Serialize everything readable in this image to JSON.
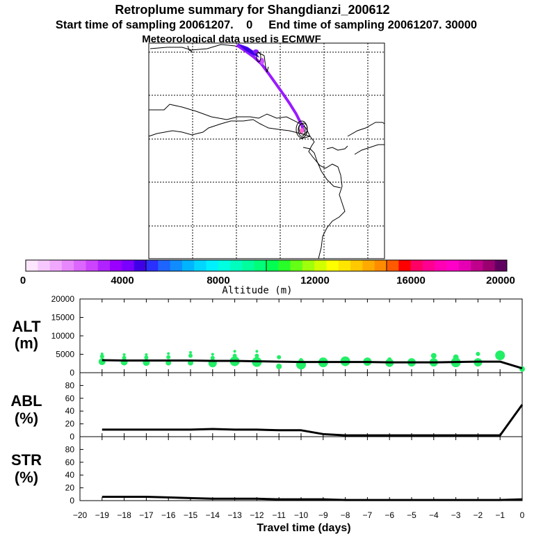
{
  "header": {
    "title": "Retroplume summary for Shangdianzi_200612",
    "sampling": "Start time of sampling 20061207.    0     End time of sampling 20061207. 30000",
    "met": "Meteorological data used is ECMWF"
  },
  "colorbar": {
    "label": "Altitude (m)",
    "tick_labels": [
      "0",
      "4000",
      "8000",
      "12000",
      "16000",
      "20000"
    ],
    "colors": [
      "#ffe6ff",
      "#f7c8ff",
      "#f0a8ff",
      "#e888ff",
      "#dc66ff",
      "#cc44ff",
      "#b022ff",
      "#9a00ff",
      "#7a00ff",
      "#4000e6",
      "#2a30ff",
      "#1e64ff",
      "#108cff",
      "#00b4ff",
      "#00d6ff",
      "#00f0ff",
      "#00ffe0",
      "#00ffbe",
      "#00ff9c",
      "#00ff78",
      "#00ff50",
      "#28ff28",
      "#64ff14",
      "#a0ff0a",
      "#d2ff00",
      "#ffff00",
      "#ffe600",
      "#ffc800",
      "#ffaa00",
      "#ff8c00",
      "#ff5a00",
      "#ff0000",
      "#ff0064",
      "#ff0090",
      "#ff00b4",
      "#ff00c8",
      "#e600b4",
      "#c0008c",
      "#9a0070",
      "#600060"
    ]
  },
  "chart_data": [
    {
      "type": "scatter",
      "title": "ALT (m)",
      "ylabel_lines": [
        "ALT",
        "(m)"
      ],
      "ylim": [
        0,
        20000
      ],
      "yticks": [
        0,
        5000,
        10000,
        15000,
        20000
      ],
      "xlim": [
        -20,
        0
      ],
      "line": {
        "x": [
          -19,
          -18,
          -17,
          -16,
          -15,
          -14,
          -13,
          -12,
          -11,
          -10,
          -9,
          -8,
          -7,
          -6,
          -5,
          -4,
          -3,
          -2,
          -1,
          0
        ],
        "y": [
          3400,
          3300,
          3300,
          3300,
          3300,
          3200,
          3200,
          3100,
          3000,
          2900,
          2900,
          2900,
          2900,
          2800,
          2800,
          2800,
          2900,
          3000,
          3000,
          1200
        ]
      },
      "points": [
        {
          "x": -19,
          "y": 5100,
          "s": 2
        },
        {
          "x": -19,
          "y": 4400,
          "s": 3
        },
        {
          "x": -19,
          "y": 3000,
          "s": 5
        },
        {
          "x": -18,
          "y": 4900,
          "s": 2
        },
        {
          "x": -18,
          "y": 4000,
          "s": 3
        },
        {
          "x": -18,
          "y": 2900,
          "s": 5
        },
        {
          "x": -17,
          "y": 4900,
          "s": 2
        },
        {
          "x": -17,
          "y": 4100,
          "s": 3
        },
        {
          "x": -17,
          "y": 2800,
          "s": 5
        },
        {
          "x": -16,
          "y": 5200,
          "s": 2
        },
        {
          "x": -16,
          "y": 4200,
          "s": 3
        },
        {
          "x": -16,
          "y": 2700,
          "s": 4
        },
        {
          "x": -15,
          "y": 5500,
          "s": 2
        },
        {
          "x": -15,
          "y": 4600,
          "s": 3
        },
        {
          "x": -15,
          "y": 2700,
          "s": 4
        },
        {
          "x": -14,
          "y": 5000,
          "s": 2
        },
        {
          "x": -14,
          "y": 4000,
          "s": 3
        },
        {
          "x": -14,
          "y": 2600,
          "s": 6
        },
        {
          "x": -13,
          "y": 5800,
          "s": 2
        },
        {
          "x": -13,
          "y": 4600,
          "s": 3
        },
        {
          "x": -13,
          "y": 3100,
          "s": 7
        },
        {
          "x": -12,
          "y": 5800,
          "s": 2
        },
        {
          "x": -12,
          "y": 4600,
          "s": 3
        },
        {
          "x": -12,
          "y": 2900,
          "s": 7
        },
        {
          "x": -11,
          "y": 4200,
          "s": 3
        },
        {
          "x": -11,
          "y": 1700,
          "s": 4
        },
        {
          "x": -10,
          "y": 3400,
          "s": 3
        },
        {
          "x": -10,
          "y": 2200,
          "s": 7
        },
        {
          "x": -9,
          "y": 2800,
          "s": 7
        },
        {
          "x": -8,
          "y": 3100,
          "s": 7
        },
        {
          "x": -7,
          "y": 3000,
          "s": 6
        },
        {
          "x": -6,
          "y": 3600,
          "s": 3
        },
        {
          "x": -6,
          "y": 2700,
          "s": 6
        },
        {
          "x": -5,
          "y": 2800,
          "s": 6
        },
        {
          "x": -4,
          "y": 4600,
          "s": 4
        },
        {
          "x": -4,
          "y": 2800,
          "s": 6
        },
        {
          "x": -3,
          "y": 4200,
          "s": 4
        },
        {
          "x": -3,
          "y": 2800,
          "s": 7
        },
        {
          "x": -2,
          "y": 5100,
          "s": 3
        },
        {
          "x": -2,
          "y": 2800,
          "s": 6
        },
        {
          "x": -1,
          "y": 4700,
          "s": 7
        },
        {
          "x": 0,
          "y": 1000,
          "s": 4
        }
      ],
      "point_color": "#22ee66"
    },
    {
      "type": "line",
      "title": "ABL (%)",
      "ylabel_lines": [
        "ABL",
        "(%)"
      ],
      "ylim": [
        0,
        100
      ],
      "yticks": [
        0,
        20,
        40,
        60,
        80
      ],
      "xlim": [
        -20,
        0
      ],
      "x": [
        -19,
        -18,
        -17,
        -16,
        -15,
        -14,
        -13,
        -12,
        -11,
        -10,
        -9,
        -8,
        -7,
        -6,
        -5,
        -4,
        -3,
        -2,
        -1,
        0
      ],
      "y": [
        11,
        11,
        11,
        11,
        11,
        12,
        11,
        11,
        10,
        10,
        4,
        2,
        2,
        2,
        2,
        2,
        2,
        2,
        2,
        50
      ]
    },
    {
      "type": "line",
      "title": "STR (%)",
      "ylabel_lines": [
        "STR",
        "(%)"
      ],
      "ylim": [
        0,
        100
      ],
      "yticks": [
        0,
        20,
        40,
        60,
        80
      ],
      "xlim": [
        -20,
        0
      ],
      "xlabel": "Travel time (days)",
      "xticks": [
        -20,
        -19,
        -18,
        -17,
        -16,
        -15,
        -14,
        -13,
        -12,
        -11,
        -10,
        -9,
        -8,
        -7,
        -6,
        -5,
        -4,
        -3,
        -2,
        -1,
        0
      ],
      "x": [
        -19,
        -18,
        -17,
        -16,
        -15,
        -14,
        -13,
        -12,
        -11,
        -10,
        -9,
        -8,
        -7,
        -6,
        -5,
        -4,
        -3,
        -2,
        -1,
        0
      ],
      "y": [
        6,
        6,
        6,
        5,
        4,
        3,
        3,
        3,
        2,
        2,
        2,
        1,
        1,
        1,
        1,
        1,
        1,
        1,
        1,
        2
      ]
    }
  ]
}
